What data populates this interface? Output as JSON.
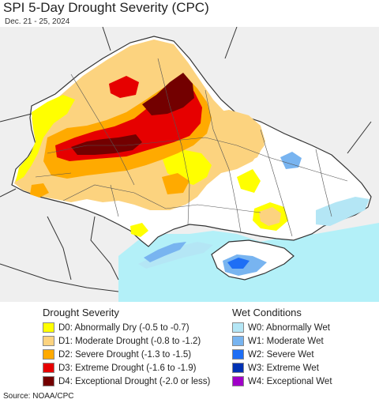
{
  "header": {
    "title": "SPI 5-Day Drought Severity (CPC)",
    "subtitle": "Dec. 21 - 25, 2024"
  },
  "colors": {
    "land_outside": "#efefef",
    "land_inside": "#ffffff",
    "sea": "#b3f0f8",
    "borders": "#333333",
    "d0": "#ffff00",
    "d1": "#fcd37f",
    "d2": "#ffaa00",
    "d3": "#e60000",
    "d4": "#730000",
    "w0": "#b4e6f5",
    "w1": "#78b4f0",
    "w2": "#1e6ef5",
    "w3": "#0032b4",
    "w4": "#a000c8"
  },
  "legend": {
    "drought": {
      "heading": "Drought Severity",
      "items": [
        {
          "label": "D0: Abnormally Dry (-0.5 to -0.7)",
          "color": "#ffff00"
        },
        {
          "label": "D1: Moderate Drought (-0.8 to -1.2)",
          "color": "#fcd37f"
        },
        {
          "label": "D2: Severe Drought (-1.3 to -1.5)",
          "color": "#ffaa00"
        },
        {
          "label": "D3: Extreme Drought (-1.6 to -1.9)",
          "color": "#e60000"
        },
        {
          "label": "D4: Exceptional Drought (-2.0 or less)",
          "color": "#730000"
        }
      ]
    },
    "wet": {
      "heading": "Wet Conditions",
      "items": [
        {
          "label": "W0: Abnormally Wet",
          "color": "#b4e6f5"
        },
        {
          "label": "W1: Moderate Wet",
          "color": "#78b4f0"
        },
        {
          "label": "W2: Severe Wet",
          "color": "#1e6ef5"
        },
        {
          "label": "W3: Extreme Wet",
          "color": "#0032b4"
        },
        {
          "label": "W4: Exceptional Wet",
          "color": "#a000c8"
        }
      ]
    }
  },
  "footer": {
    "source": "Source: NOAA/CPC"
  }
}
